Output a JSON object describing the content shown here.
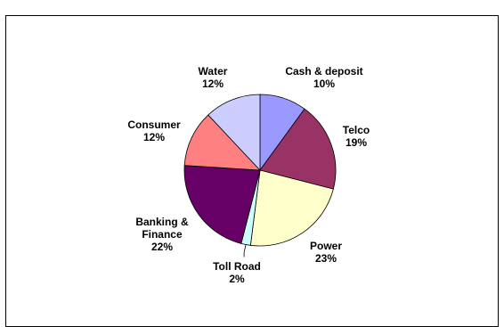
{
  "chart_data": {
    "type": "pie",
    "title": "",
    "slices": [
      {
        "label": "Cash & deposit",
        "value": 10,
        "display": "10%",
        "color": "#9999ff"
      },
      {
        "label": "Telco",
        "value": 19,
        "display": "19%",
        "color": "#993366"
      },
      {
        "label": "Power",
        "value": 23,
        "display": "23%",
        "color": "#ffffcc"
      },
      {
        "label": "Toll Road",
        "value": 2,
        "display": "2%",
        "color": "#ccffff"
      },
      {
        "label": "Banking & Finance",
        "value": 22,
        "display": "22%",
        "color": "#660066"
      },
      {
        "label": "Consumer",
        "value": 12,
        "display": "12%",
        "color": "#ff8080"
      },
      {
        "label": "Water",
        "value": 12,
        "display": "12%",
        "color": "#ccccff"
      }
    ],
    "start_angle": "12 o'clock",
    "direction": "clockwise",
    "legend": "none"
  }
}
